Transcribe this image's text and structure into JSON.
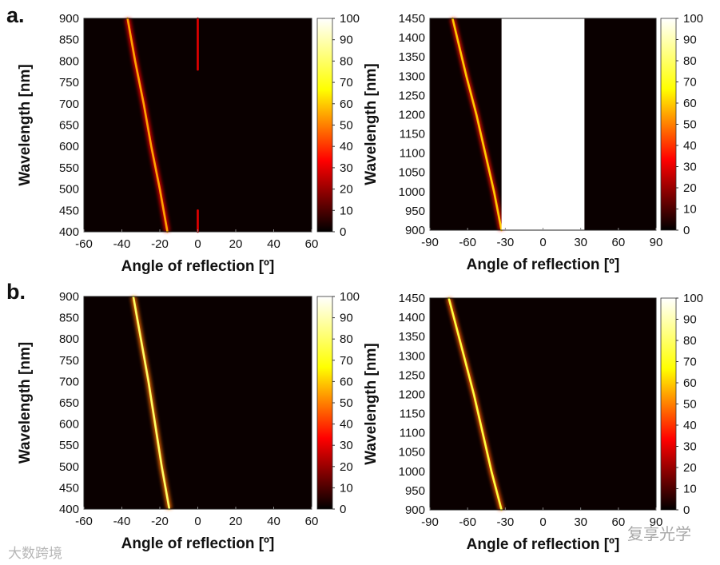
{
  "panel_labels": [
    "a.",
    "b."
  ],
  "watermarks": {
    "left": "大数跨境",
    "right": "复享光学"
  },
  "colormap": {
    "name": "hot",
    "stops": [
      "#000000",
      "#ff0000",
      "#ffff00",
      "#ffffff"
    ]
  },
  "chart_data": [
    {
      "type": "heatmap",
      "panel": "a-left",
      "xlabel": "Angle of reflection [º]",
      "ylabel": "Wavelength [nm]",
      "xlim": [
        -60,
        60
      ],
      "ylim": [
        400,
        900
      ],
      "xticks": [
        -60,
        -40,
        -20,
        0,
        20,
        40,
        60
      ],
      "yticks": [
        400,
        450,
        500,
        550,
        600,
        650,
        700,
        750,
        800,
        850,
        900
      ],
      "colorbar": {
        "range": [
          0,
          100
        ],
        "ticks": [
          0,
          10,
          20,
          30,
          40,
          50,
          60,
          70,
          80,
          90,
          100
        ]
      },
      "bands": [
        {
          "points": [
            [
              -37,
              900
            ],
            [
              -33,
              800
            ],
            [
              -28.5,
              700
            ],
            [
              -24.5,
              600
            ],
            [
              -20,
              500
            ],
            [
              -16,
              400
            ]
          ],
          "intensity": 55
        },
        {
          "points": [
            [
              0,
              900
            ],
            [
              0,
              780
            ]
          ],
          "intensity": 30
        },
        {
          "points": [
            [
              0,
              450
            ],
            [
              0,
              400
            ]
          ],
          "intensity": 30
        }
      ],
      "masked_region": null
    },
    {
      "type": "heatmap",
      "panel": "a-right",
      "xlabel": "Angle of reflection [º]",
      "ylabel": "Wavelength [nm]",
      "xlim": [
        -90,
        90
      ],
      "ylim": [
        900,
        1450
      ],
      "xticks": [
        -90,
        -60,
        -30,
        0,
        30,
        60,
        90
      ],
      "yticks": [
        900,
        950,
        1000,
        1050,
        1100,
        1150,
        1200,
        1250,
        1300,
        1350,
        1400,
        1450
      ],
      "colorbar": {
        "range": [
          0,
          100
        ],
        "ticks": [
          0,
          10,
          20,
          30,
          40,
          50,
          60,
          70,
          80,
          90,
          100
        ]
      },
      "bands": [
        {
          "points": [
            [
              -72,
              1450
            ],
            [
              -61,
              1300
            ],
            [
              -53,
              1200
            ],
            [
              -46,
              1100
            ],
            [
              -39,
              1000
            ],
            [
              -33,
              900
            ]
          ],
          "intensity": 60
        }
      ],
      "masked_region": [
        -33,
        33
      ]
    },
    {
      "type": "heatmap",
      "panel": "b-left",
      "xlabel": "Angle of reflection [º]",
      "ylabel": "Wavelength [nm]",
      "xlim": [
        -60,
        60
      ],
      "ylim": [
        400,
        900
      ],
      "xticks": [
        -60,
        -40,
        -20,
        0,
        20,
        40,
        60
      ],
      "yticks": [
        400,
        450,
        500,
        550,
        600,
        650,
        700,
        750,
        800,
        850,
        900
      ],
      "colorbar": {
        "range": [
          0,
          100
        ],
        "ticks": [
          0,
          10,
          20,
          30,
          40,
          50,
          60,
          70,
          80,
          90,
          100
        ]
      },
      "bands": [
        {
          "points": [
            [
              -34,
              900
            ],
            [
              -30,
              800
            ],
            [
              -26,
              700
            ],
            [
              -22.5,
              600
            ],
            [
              -19,
              500
            ],
            [
              -15,
              400
            ]
          ],
          "intensity": 80
        }
      ],
      "masked_region": null
    },
    {
      "type": "heatmap",
      "panel": "b-right",
      "xlabel": "Angle of reflection [º]",
      "ylabel": "Wavelength [nm]",
      "xlim": [
        -90,
        90
      ],
      "ylim": [
        900,
        1450
      ],
      "xticks": [
        -90,
        -60,
        -30,
        0,
        30,
        60,
        90
      ],
      "yticks": [
        900,
        950,
        1000,
        1050,
        1100,
        1150,
        1200,
        1250,
        1300,
        1350,
        1400,
        1450
      ],
      "colorbar": {
        "range": [
          0,
          100
        ],
        "ticks": [
          0,
          10,
          20,
          30,
          40,
          50,
          60,
          70,
          80,
          90,
          100
        ]
      },
      "bands": [
        {
          "points": [
            [
              -75,
              1450
            ],
            [
              -63,
              1300
            ],
            [
              -55,
              1200
            ],
            [
              -48,
              1100
            ],
            [
              -41,
              1000
            ],
            [
              -33,
              900
            ]
          ],
          "intensity": 75
        }
      ],
      "masked_region": null
    }
  ]
}
